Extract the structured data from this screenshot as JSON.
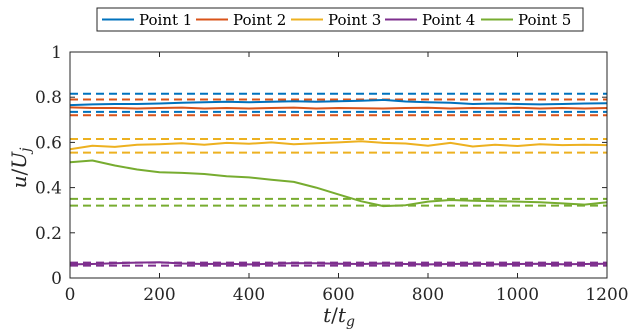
{
  "chart_data": {
    "type": "line",
    "title": "",
    "xlabel": "t/t_g",
    "ylabel": "u/U_j",
    "xlim": [
      0,
      1200
    ],
    "ylim": [
      0,
      1
    ],
    "xticks": [
      0,
      200,
      400,
      600,
      800,
      1000,
      1200
    ],
    "xtick_labels": [
      "0",
      "200",
      "400",
      "600",
      "800",
      "1000",
      "1200"
    ],
    "yticks": [
      0,
      0.2,
      0.4,
      0.6,
      0.8,
      1
    ],
    "ytick_labels": [
      "0",
      "0.2",
      "0.4",
      "0.6",
      "0.8",
      "1"
    ],
    "grid": false,
    "legend": {
      "placement": "top-outside",
      "orientation": "horizontal"
    },
    "series": [
      {
        "name": "Point 1",
        "color": "#0072BD",
        "x": [
          0,
          50,
          100,
          150,
          200,
          250,
          300,
          350,
          400,
          450,
          500,
          550,
          600,
          650,
          700,
          750,
          800,
          850,
          900,
          950,
          1000,
          1050,
          1100,
          1150,
          1200
        ],
        "y": [
          0.765,
          0.768,
          0.77,
          0.77,
          0.772,
          0.775,
          0.778,
          0.78,
          0.778,
          0.78,
          0.782,
          0.78,
          0.782,
          0.784,
          0.788,
          0.781,
          0.778,
          0.775,
          0.77,
          0.772,
          0.77,
          0.768,
          0.77,
          0.772,
          0.773
        ],
        "bounds": [
          0.735,
          0.815
        ]
      },
      {
        "name": "Point 2",
        "color": "#D95319",
        "x": [
          0,
          50,
          100,
          150,
          200,
          250,
          300,
          350,
          400,
          450,
          500,
          550,
          600,
          650,
          700,
          750,
          800,
          850,
          900,
          950,
          1000,
          1050,
          1100,
          1150,
          1200
        ],
        "y": [
          0.755,
          0.752,
          0.752,
          0.75,
          0.752,
          0.754,
          0.75,
          0.752,
          0.75,
          0.752,
          0.754,
          0.75,
          0.752,
          0.751,
          0.75,
          0.752,
          0.753,
          0.75,
          0.752,
          0.751,
          0.753,
          0.75,
          0.752,
          0.75,
          0.752
        ],
        "bounds": [
          0.72,
          0.79
        ]
      },
      {
        "name": "Point 3",
        "color": "#EDB120",
        "x": [
          0,
          50,
          100,
          150,
          200,
          250,
          300,
          350,
          400,
          450,
          500,
          550,
          600,
          650,
          700,
          750,
          800,
          850,
          900,
          950,
          1000,
          1050,
          1100,
          1150,
          1200
        ],
        "y": [
          0.57,
          0.585,
          0.58,
          0.59,
          0.592,
          0.596,
          0.59,
          0.598,
          0.594,
          0.6,
          0.592,
          0.596,
          0.6,
          0.605,
          0.598,
          0.595,
          0.585,
          0.598,
          0.582,
          0.59,
          0.584,
          0.592,
          0.588,
          0.59,
          0.588
        ],
        "bounds": [
          0.555,
          0.615
        ]
      },
      {
        "name": "Point 4",
        "color": "#7E2F8E",
        "x": [
          0,
          50,
          100,
          150,
          200,
          250,
          300,
          350,
          400,
          450,
          500,
          550,
          600,
          650,
          700,
          750,
          800,
          850,
          900,
          950,
          1000,
          1050,
          1100,
          1150,
          1200
        ],
        "y": [
          0.06,
          0.062,
          0.065,
          0.068,
          0.07,
          0.064,
          0.062,
          0.063,
          0.06,
          0.063,
          0.066,
          0.065,
          0.063,
          0.062,
          0.064,
          0.062,
          0.06,
          0.062,
          0.063,
          0.061,
          0.062,
          0.063,
          0.061,
          0.062,
          0.063
        ],
        "bounds": [
          0.055,
          0.068
        ]
      },
      {
        "name": "Point 5",
        "color": "#77AC30",
        "x": [
          0,
          50,
          100,
          150,
          200,
          250,
          300,
          350,
          400,
          450,
          500,
          550,
          600,
          650,
          700,
          750,
          800,
          850,
          900,
          950,
          1000,
          1050,
          1100,
          1150,
          1200
        ],
        "y": [
          0.512,
          0.52,
          0.498,
          0.48,
          0.468,
          0.465,
          0.46,
          0.45,
          0.445,
          0.435,
          0.425,
          0.4,
          0.37,
          0.34,
          0.318,
          0.322,
          0.338,
          0.345,
          0.342,
          0.34,
          0.338,
          0.335,
          0.33,
          0.325,
          0.335
        ],
        "bounds": [
          0.32,
          0.35
        ]
      }
    ]
  }
}
